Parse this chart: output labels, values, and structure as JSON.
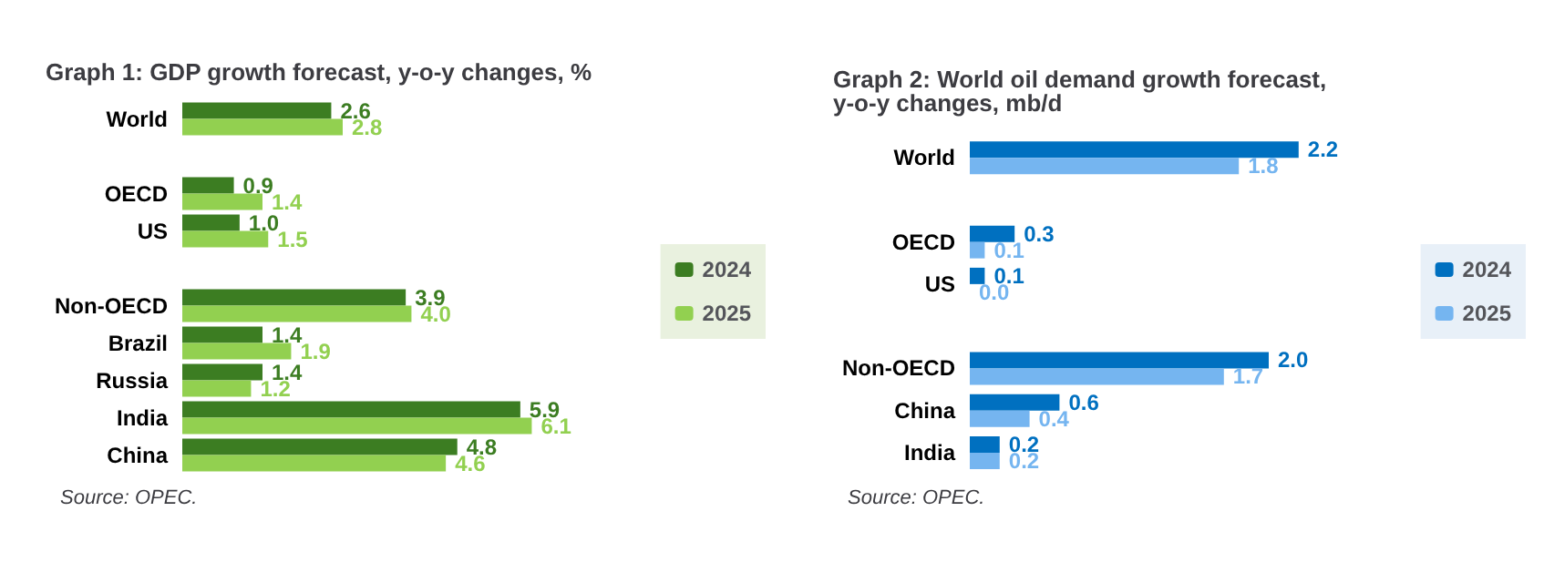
{
  "chart_data": [
    {
      "type": "bar",
      "orientation": "horizontal",
      "title": "Graph 1: GDP growth forecast, y-o-y changes, %",
      "categories": [
        "World",
        null,
        "OECD",
        "US",
        null,
        "Non-OECD",
        "Brazil",
        "Russia",
        "India",
        "China"
      ],
      "series": [
        {
          "name": "2024",
          "color": "#3c7d22",
          "values": [
            2.6,
            null,
            0.9,
            1.0,
            null,
            3.9,
            1.4,
            1.4,
            5.9,
            4.8
          ],
          "value_labels": [
            "2.6",
            null,
            "0.9",
            "1.0",
            null,
            "3.9",
            "1.4",
            "1.4",
            "5.9",
            "4.8"
          ]
        },
        {
          "name": "2025",
          "color": "#92d050",
          "values": [
            2.8,
            null,
            1.4,
            1.5,
            null,
            4.0,
            1.9,
            1.2,
            6.1,
            4.6
          ],
          "value_labels": [
            "2.8",
            null,
            "1.4",
            "1.5",
            null,
            "4.0",
            "1.9",
            "1.2",
            "6.1",
            "4.6"
          ]
        }
      ],
      "data_labels": true,
      "legend": "right",
      "annotations": [
        "Source: OPEC."
      ]
    },
    {
      "type": "bar",
      "orientation": "horizontal",
      "title": "Graph 2: World oil demand growth forecast, y-o-y changes, mb/d",
      "categories": [
        "World",
        null,
        "OECD",
        "US",
        null,
        "Non-OECD",
        "China",
        "India"
      ],
      "series": [
        {
          "name": "2024",
          "color": "#0070c0",
          "values": [
            2.2,
            null,
            0.3,
            0.1,
            null,
            2.0,
            0.6,
            0.2
          ],
          "value_labels": [
            "2.2",
            null,
            "0.3",
            "0.1",
            null,
            "2.0",
            "0.6",
            "0.2"
          ]
        },
        {
          "name": "2025",
          "color": "#75b5f0",
          "values": [
            1.8,
            null,
            0.1,
            0.0,
            null,
            1.7,
            0.4,
            0.2
          ],
          "value_labels": [
            "1.8",
            null,
            "0.1",
            "0.0",
            null,
            "1.7",
            "0.4",
            "0.2"
          ]
        }
      ],
      "data_labels": true,
      "legend": "right",
      "annotations": [
        "Source: OPEC."
      ]
    }
  ]
}
